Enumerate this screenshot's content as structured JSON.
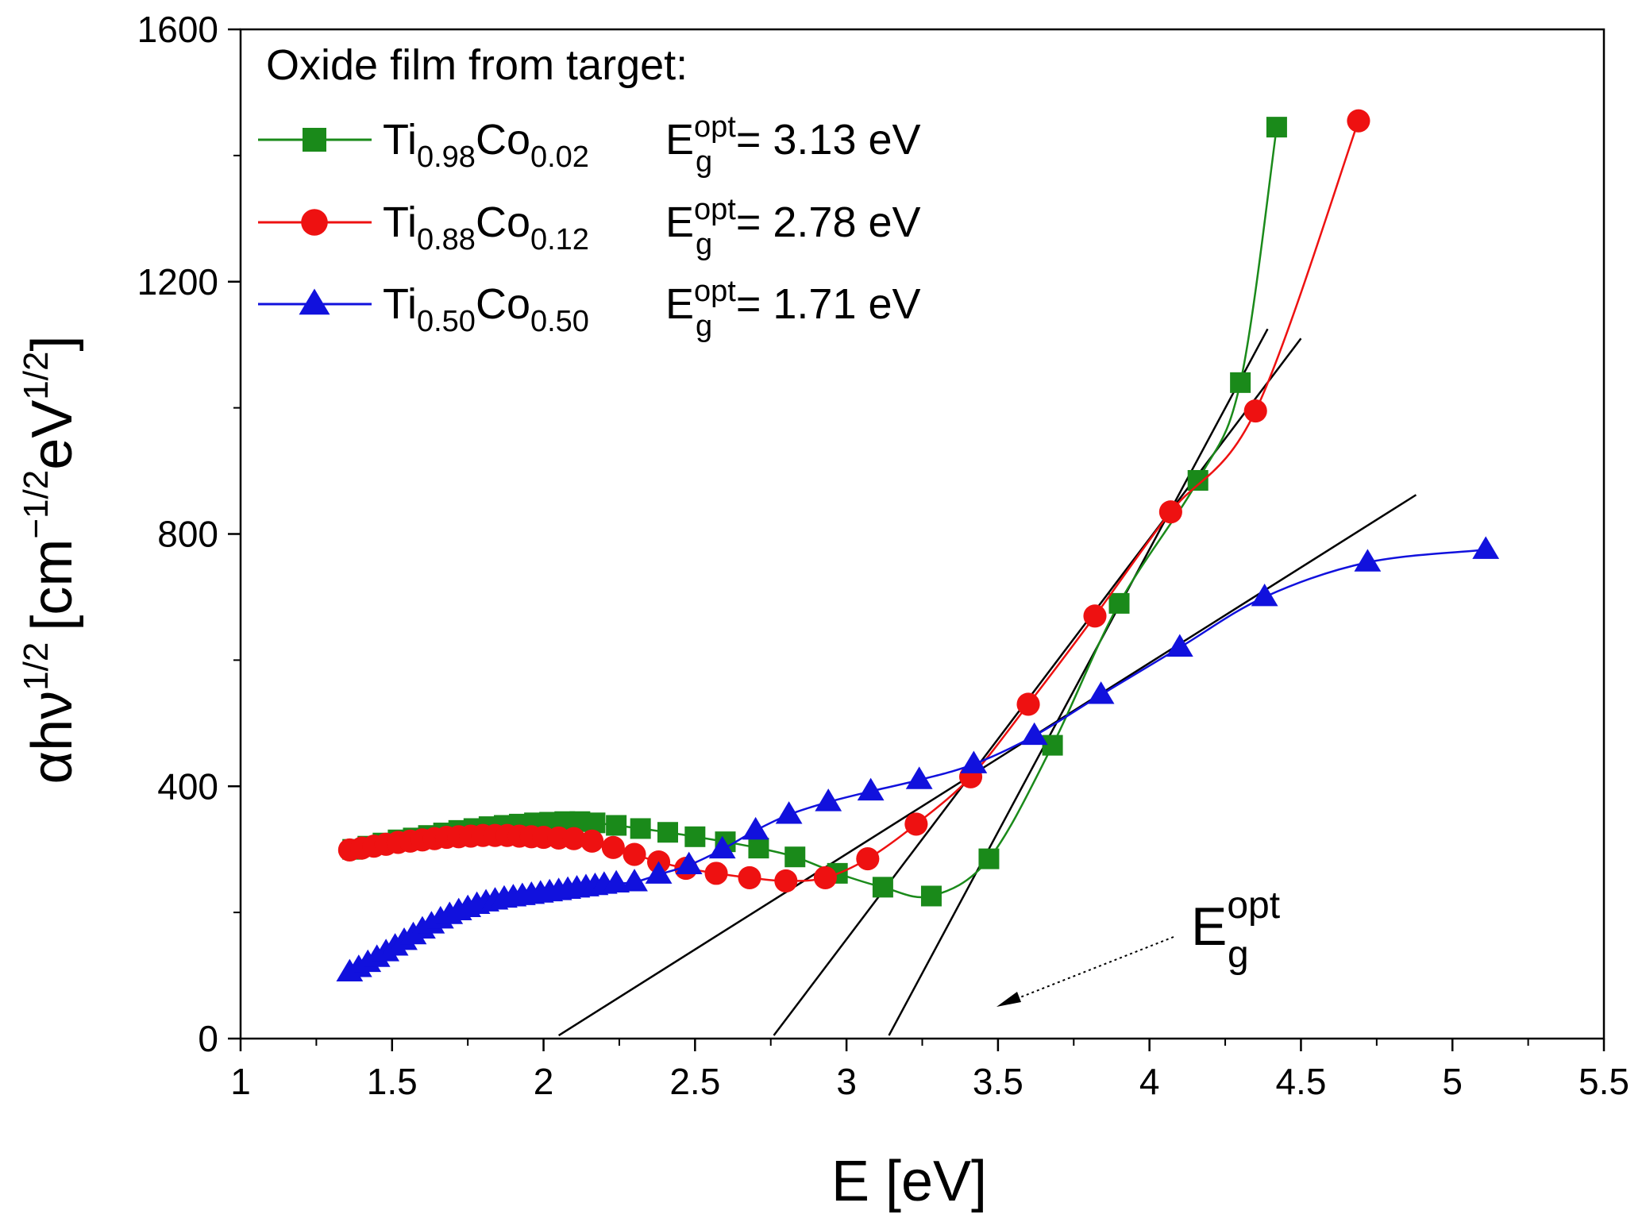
{
  "chart_data": {
    "type": "line",
    "xlabel": "E [eV]",
    "ylabel": {
      "base": "αhν",
      "exp1": "1/2",
      "bracket": "[cm",
      "exp2": "−1/2",
      "unit": "eV",
      "exp3": "1/2",
      "close": "]"
    },
    "xlim": [
      1,
      5.5
    ],
    "ylim": [
      0,
      1600
    ],
    "xticks": [
      "1",
      "1.5",
      "2",
      "2.5",
      "3",
      "3.5",
      "4",
      "4.5",
      "5",
      "5.5"
    ],
    "yticks": [
      "0",
      "400",
      "800",
      "1200",
      "1600"
    ],
    "legend": {
      "title": "Oxide film from target:",
      "placement": "top-left",
      "entries": [
        {
          "base1": "Ti",
          "sub1": "0.98",
          "base2": "Co",
          "sub2": "0.02",
          "eg_base": "E",
          "eg_sub": "g",
          "eg_sup": "opt",
          "eg_value": "= 3.13 eV"
        },
        {
          "base1": "Ti",
          "sub1": "0.88",
          "base2": "Co",
          "sub2": "0.12",
          "eg_base": "E",
          "eg_sub": "g",
          "eg_sup": "opt",
          "eg_value": "= 2.78 eV"
        },
        {
          "base1": "Ti",
          "sub1": "0.50",
          "base2": "Co",
          "sub2": "0.50",
          "eg_base": "E",
          "eg_sub": "g",
          "eg_sup": "opt",
          "eg_value": "= 1.71 eV"
        }
      ]
    },
    "annotation": {
      "base": "E",
      "sub": "g",
      "sup": "opt"
    },
    "series": [
      {
        "color": "#1a8a1a",
        "marker": "square",
        "x": [
          1.37,
          1.42,
          1.47,
          1.52,
          1.57,
          1.62,
          1.67,
          1.72,
          1.77,
          1.82,
          1.87,
          1.92,
          1.97,
          2.02,
          2.07,
          2.12,
          2.17,
          2.24,
          2.32,
          2.41,
          2.5,
          2.6,
          2.71,
          2.83,
          2.97,
          3.12,
          3.28,
          3.47,
          3.68,
          3.9,
          4.16,
          4.3,
          4.42
        ],
        "values": [
          300,
          305,
          310,
          315,
          318,
          322,
          326,
          330,
          333,
          336,
          338,
          340,
          342,
          343,
          344,
          344,
          342,
          338,
          333,
          327,
          320,
          312,
          302,
          288,
          262,
          240,
          226,
          285,
          465,
          690,
          885,
          1040,
          1445
        ]
      },
      {
        "color": "#ee1111",
        "marker": "circle",
        "x": [
          1.36,
          1.4,
          1.44,
          1.48,
          1.52,
          1.56,
          1.6,
          1.64,
          1.68,
          1.72,
          1.76,
          1.8,
          1.84,
          1.88,
          1.92,
          1.96,
          2.0,
          2.05,
          2.1,
          2.16,
          2.23,
          2.3,
          2.38,
          2.47,
          2.57,
          2.68,
          2.8,
          2.93,
          3.07,
          3.23,
          3.41,
          3.6,
          3.82,
          4.07,
          4.35,
          4.69
        ],
        "values": [
          299,
          302,
          305,
          308,
          311,
          313,
          315,
          317,
          319,
          320,
          321,
          322,
          322,
          322,
          321,
          320,
          319,
          318,
          317,
          313,
          303,
          292,
          280,
          270,
          262,
          255,
          250,
          255,
          285,
          340,
          415,
          530,
          670,
          835,
          995,
          1455
        ]
      },
      {
        "color": "#1111dd",
        "marker": "triangle",
        "x": [
          1.36,
          1.39,
          1.42,
          1.45,
          1.48,
          1.51,
          1.54,
          1.57,
          1.6,
          1.63,
          1.66,
          1.69,
          1.72,
          1.75,
          1.78,
          1.81,
          1.84,
          1.87,
          1.9,
          1.93,
          1.96,
          1.99,
          2.02,
          2.05,
          2.08,
          2.11,
          2.14,
          2.17,
          2.2,
          2.24,
          2.3,
          2.38,
          2.48,
          2.59,
          2.7,
          2.81,
          2.94,
          3.08,
          3.24,
          3.42,
          3.62,
          3.84,
          4.1,
          4.38,
          4.72,
          5.11
        ],
        "values": [
          105,
          112,
          120,
          128,
          137,
          146,
          155,
          164,
          173,
          181,
          189,
          196,
          202,
          207,
          212,
          216,
          219,
          222,
          224,
          226,
          228,
          230,
          232,
          234,
          236,
          238,
          240,
          242,
          244,
          246,
          248,
          260,
          275,
          300,
          330,
          355,
          375,
          392,
          410,
          435,
          480,
          545,
          620,
          700,
          755,
          775
        ]
      }
    ],
    "tangent_lines": [
      {
        "x": [
          2.05,
          4.88
        ],
        "values": [
          5,
          862
        ]
      },
      {
        "x": [
          2.76,
          4.5
        ],
        "values": [
          5,
          1110
        ]
      },
      {
        "x": [
          3.14,
          4.39
        ],
        "values": [
          5,
          1125
        ]
      }
    ]
  }
}
